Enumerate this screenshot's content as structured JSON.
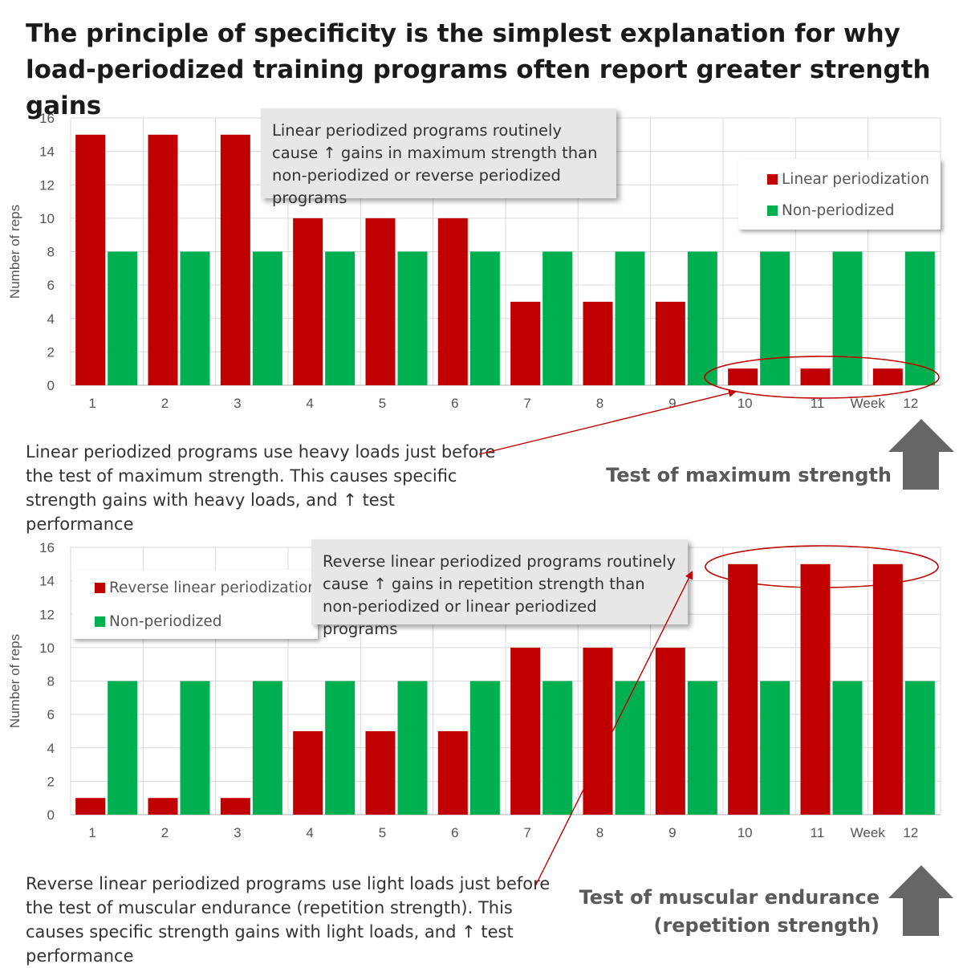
{
  "title": "The principle of specificity is the simplest explanation for why load-periodized training programs often report greater strength gains",
  "colors": {
    "red": "#c00000",
    "green": "#00b050",
    "arrow": "#666666",
    "annotation": "#c00000"
  },
  "chart_data": [
    {
      "type": "bar",
      "ylabel": "Number of reps",
      "xlabel": "Week",
      "ylim": [
        0,
        16
      ],
      "yticks": [
        "0",
        "2",
        "4",
        "6",
        "8",
        "10",
        "12",
        "14",
        "16"
      ],
      "categories": [
        "1",
        "2",
        "3",
        "4",
        "5",
        "6",
        "7",
        "8",
        "9",
        "10",
        "11",
        "12"
      ],
      "series": [
        {
          "name": "Linear periodization",
          "color": "#c00000",
          "values": [
            15,
            15,
            15,
            10,
            10,
            10,
            5,
            5,
            5,
            1,
            1,
            1
          ]
        },
        {
          "name": "Non-periodized",
          "color": "#00b050",
          "values": [
            8,
            8,
            8,
            8,
            8,
            8,
            8,
            8,
            8,
            8,
            8,
            8
          ]
        }
      ],
      "grid": true,
      "legend_position": "top-right"
    },
    {
      "type": "bar",
      "ylabel": "Number of reps",
      "xlabel": "Week",
      "ylim": [
        0,
        16
      ],
      "yticks": [
        "0",
        "2",
        "4",
        "6",
        "8",
        "10",
        "12",
        "14",
        "16"
      ],
      "categories": [
        "1",
        "2",
        "3",
        "4",
        "5",
        "6",
        "7",
        "8",
        "9",
        "10",
        "11",
        "12"
      ],
      "series": [
        {
          "name": "Reverse linear periodization",
          "color": "#c00000",
          "values": [
            1,
            1,
            1,
            5,
            5,
            5,
            10,
            10,
            10,
            15,
            15,
            15
          ]
        },
        {
          "name": "Non-periodized",
          "color": "#00b050",
          "values": [
            8,
            8,
            8,
            8,
            8,
            8,
            8,
            8,
            8,
            8,
            8,
            8
          ]
        }
      ],
      "grid": true,
      "legend_position": "top-left"
    }
  ],
  "callouts": {
    "top": "Linear periodized programs routinely cause ↑ gains in maximum strength than non-periodized or reverse periodized programs",
    "bottom": "Reverse linear periodized programs routinely cause ↑ gains in repetition strength than non-periodized or linear periodized programs"
  },
  "notes": {
    "top": "Linear periodized programs use heavy loads just before the test of maximum strength. This causes specific strength gains with heavy loads, and ↑ test performance",
    "bottom": "Reverse linear periodized programs use light loads just before the test of muscular endurance (repetition strength). This causes specific strength gains with light loads, and ↑ test performance"
  },
  "test_labels": {
    "top": "Test of maximum strength",
    "bottom_line1": "Test of muscular endurance",
    "bottom_line2": "(repetition strength)"
  },
  "icons": {
    "test_arrow": "up-arrow-icon"
  }
}
